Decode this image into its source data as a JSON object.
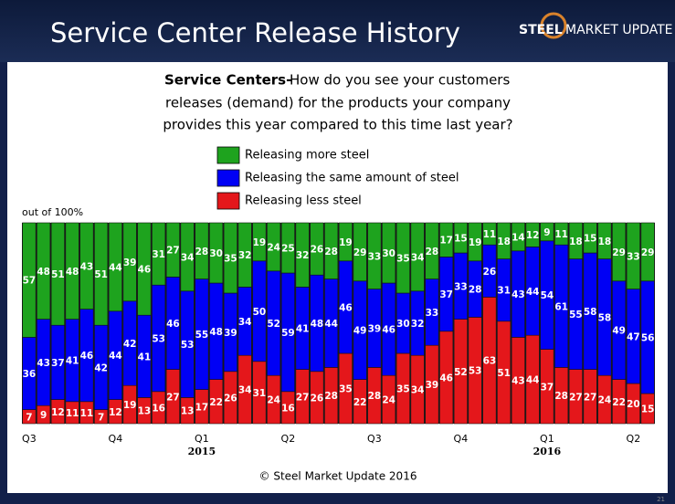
{
  "logo": [
    "STEEL",
    "MARKET UPDATE"
  ],
  "page_number": "21",
  "chart_data": {
    "type": "stacked_bar",
    "title": "Service Center Release History",
    "subtitle_lead": "Service Centers-",
    "subtitle": [
      "How do you  see your customers",
      "releases (demand) for the products your company",
      "provides this year compared to this time last year?"
    ],
    "y_label": "out of 100%",
    "source": "© Steel Market Update 2016",
    "categories": [
      "Q3",
      null,
      null,
      null,
      null,
      null,
      "Q4",
      null,
      null,
      null,
      null,
      null,
      "Q1",
      null,
      null,
      null,
      null,
      null,
      "Q2",
      null,
      null,
      null,
      null,
      null,
      "Q3",
      null,
      null,
      null,
      null,
      null,
      "Q4",
      null,
      null,
      null,
      null,
      null,
      "Q1",
      null,
      null,
      null,
      null,
      null,
      "Q2",
      null
    ],
    "years": [
      null,
      null,
      null,
      null,
      null,
      null,
      null,
      null,
      null,
      null,
      null,
      null,
      "2015",
      null,
      null,
      null,
      null,
      null,
      null,
      null,
      null,
      null,
      null,
      null,
      null,
      null,
      null,
      null,
      null,
      null,
      null,
      null,
      null,
      null,
      null,
      null,
      "2016",
      null,
      null,
      null,
      null,
      null,
      null,
      null
    ],
    "ylim": [
      0,
      100
    ],
    "series": [
      {
        "name": "Releasing less steel",
        "color": "#e4171b",
        "values": [
          7,
          9,
          12,
          11,
          11,
          7,
          12,
          19,
          13,
          16,
          27,
          13,
          17,
          22,
          26,
          34,
          31,
          24,
          16,
          27,
          26,
          28,
          35,
          22,
          28,
          24,
          35,
          34,
          39,
          46,
          52,
          53,
          63,
          51,
          43,
          44,
          37,
          28,
          27,
          27,
          24,
          22,
          20,
          15
        ]
      },
      {
        "name": "Releasing the same amount of steel",
        "color": "#0000f5",
        "values": [
          36,
          43,
          37,
          41,
          46,
          42,
          44,
          42,
          41,
          53,
          46,
          53,
          55,
          48,
          39,
          34,
          50,
          52,
          59,
          41,
          48,
          44,
          46,
          49,
          39,
          46,
          30,
          32,
          33,
          37,
          33,
          28,
          26,
          31,
          43,
          44,
          54,
          61,
          55,
          58,
          58,
          49,
          47,
          56
        ]
      },
      {
        "name": "Releasing more steel",
        "color": "#1ea31e",
        "values": [
          57,
          48,
          51,
          48,
          43,
          51,
          44,
          39,
          46,
          31,
          27,
          34,
          28,
          30,
          35,
          32,
          19,
          24,
          25,
          32,
          26,
          28,
          19,
          29,
          33,
          30,
          35,
          34,
          28,
          17,
          15,
          19,
          11,
          18,
          14,
          12,
          9,
          11,
          18,
          15,
          18,
          29,
          33,
          29
        ]
      }
    ]
  }
}
